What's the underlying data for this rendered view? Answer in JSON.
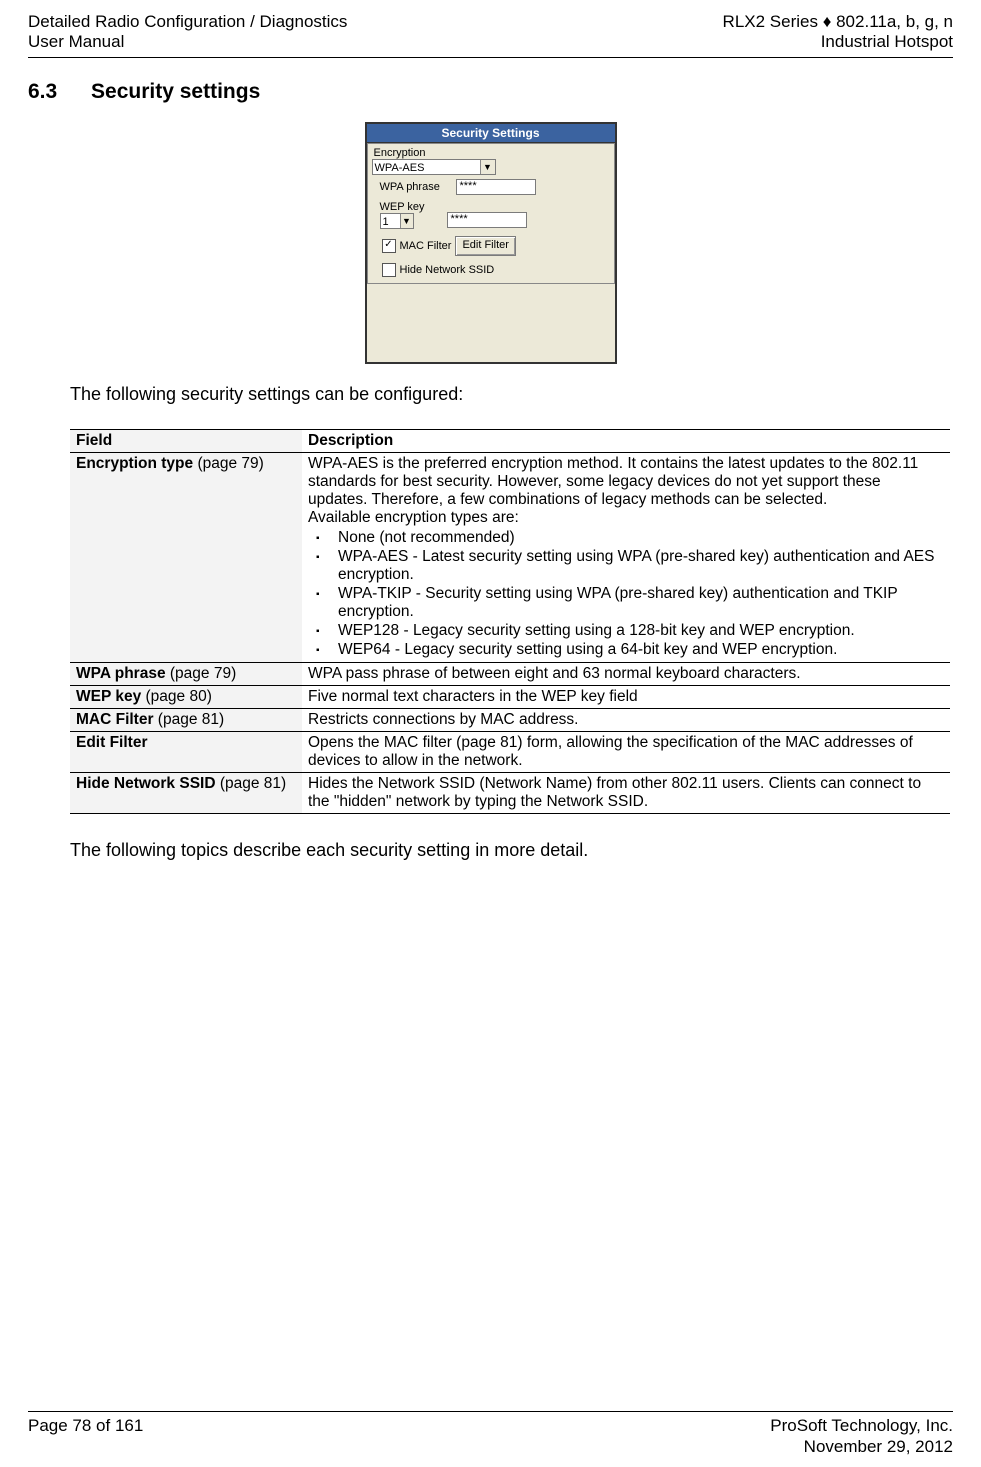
{
  "header": {
    "left_line1": "Detailed Radio Configuration / Diagnostics",
    "left_line2": "User Manual",
    "right_line1": "RLX2 Series ♦ 802.11a, b, g, n",
    "right_line2": "Industrial Hotspot"
  },
  "section": {
    "number": "6.3",
    "title": "Security settings"
  },
  "figure": {
    "title": "Security Settings",
    "encryption_group_label": "Encryption",
    "encryption_value": "WPA-AES",
    "wpa_label": "WPA phrase",
    "wpa_value": "****",
    "wep_label": "WEP key",
    "wep_index": "1",
    "wep_value": "****",
    "mac_checked": true,
    "mac_label": "MAC Filter",
    "edit_btn": "Edit  Filter",
    "hide_checked": false,
    "hide_label": "Hide Network SSID"
  },
  "intro": "The following security settings can be configured:",
  "table": {
    "head_field": "Field",
    "head_desc": "Description",
    "rows": [
      {
        "field_html": "<b>Encryption type</b> (page 79)",
        "desc_pre": "WPA-AES is the preferred encryption method. It contains the latest updates to the 802.11 standards for best security. However, some legacy devices do not yet support these updates. Therefore, a few combinations of legacy methods can be selected.<br>Available encryption types are:",
        "opts": [
          "None (not recommended)",
          "WPA-AES - Latest security setting using WPA (pre-shared key) authentication and AES encryption.",
          "WPA-TKIP - Security setting using WPA (pre-shared key) authentication and TKIP encryption.",
          "WEP128 - Legacy security setting using a 128-bit key and WEP encryption.",
          "WEP64 - Legacy security setting using a 64-bit key and WEP encryption."
        ]
      },
      {
        "field_html": "<b>WPA phrase</b> (page 79)",
        "desc": "WPA pass phrase of between eight and 63 normal keyboard characters."
      },
      {
        "field_html": "<b>WEP key</b> (page 80)",
        "desc": "Five normal text characters in the WEP key field"
      },
      {
        "field_html": "<b>MAC Filter</b> (page 81)",
        "desc": "Restricts connections by MAC address."
      },
      {
        "field_html": "<b>Edit Filter</b>",
        "desc": "Opens the MAC filter (page 81) form, allowing the specification of the MAC addresses of devices to allow in the network."
      },
      {
        "field_html": "<b>Hide Network SSID</b> (page 81)",
        "desc": "Hides the Network SSID (Network Name) from other 802.11 users. Clients can connect to the \"hidden\" network by typing the Network SSID."
      }
    ]
  },
  "outro": "The following topics describe each security setting in more detail.",
  "footer": {
    "left": "Page 78 of 161",
    "right_line1": "ProSoft Technology, Inc.",
    "right_line2": "November 29, 2012"
  }
}
